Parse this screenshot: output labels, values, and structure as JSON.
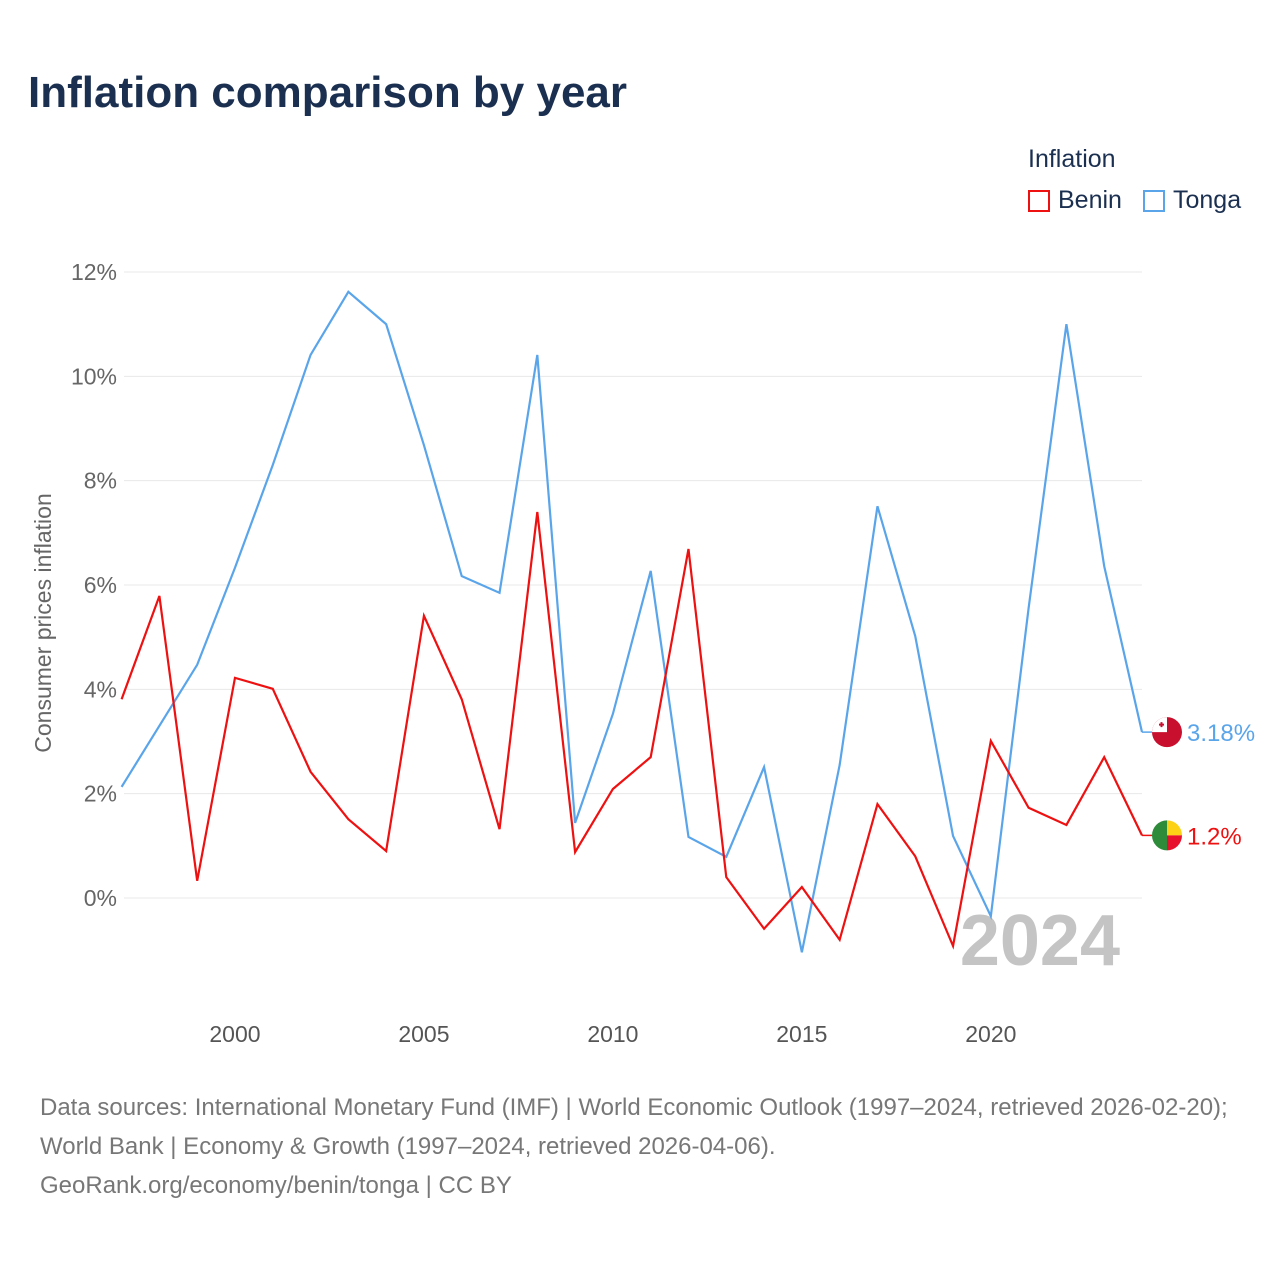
{
  "title": "Inflation comparison by year",
  "legend": {
    "title": "Inflation",
    "items": [
      {
        "label": "Benin",
        "color": "#ee1111"
      },
      {
        "label": "Tonga",
        "color": "#5aa5ea"
      }
    ]
  },
  "watermark_year": "2024",
  "footer": {
    "sources": "Data sources: International Monetary Fund (IMF) | World Economic Outlook (1997–2024, retrieved 2026-02-20); World Bank | Economy & Growth (1997–2024, retrieved 2026-04-06).",
    "credit": "GeoRank.org/economy/benin/tonga | CC BY"
  },
  "chart_data": {
    "type": "line",
    "title": "Inflation comparison by year",
    "xlabel": "",
    "ylabel": "Consumer prices inflation",
    "ylim": [
      -1.8,
      12
    ],
    "xlim": [
      1997,
      2024
    ],
    "yticks": [
      0,
      2,
      4,
      6,
      8,
      10,
      12
    ],
    "ytick_labels": [
      "0%",
      "2%",
      "4%",
      "6%",
      "8%",
      "10%",
      "12%"
    ],
    "xticks": [
      2000,
      2005,
      2010,
      2015,
      2020
    ],
    "xtick_labels": [
      "2000",
      "2005",
      "2010",
      "2015",
      "2020"
    ],
    "grid": true,
    "legend_position": "top-right",
    "x": [
      1997,
      1998,
      1999,
      2000,
      2001,
      2002,
      2003,
      2004,
      2005,
      2006,
      2007,
      2008,
      2009,
      2010,
      2011,
      2012,
      2013,
      2014,
      2015,
      2016,
      2017,
      2018,
      2019,
      2020,
      2021,
      2022,
      2023,
      2024
    ],
    "series": [
      {
        "name": "Benin",
        "color": "#ee1111",
        "end_label": "1.2%",
        "values": [
          3.81,
          5.79,
          0.33,
          4.22,
          4.01,
          2.42,
          1.51,
          0.9,
          5.41,
          3.81,
          1.32,
          7.4,
          0.88,
          2.09,
          2.7,
          6.69,
          0.4,
          -0.59,
          0.21,
          -0.8,
          1.8,
          0.8,
          -0.92,
          3.01,
          1.73,
          1.4,
          2.7,
          1.2
        ]
      },
      {
        "name": "Tonga",
        "color": "#5aa5ea",
        "end_label": "3.18%",
        "values": [
          2.13,
          3.3,
          4.47,
          6.33,
          8.3,
          10.41,
          11.62,
          11.0,
          8.68,
          6.17,
          5.85,
          10.41,
          1.44,
          3.53,
          6.27,
          1.17,
          0.79,
          2.51,
          -1.04,
          2.55,
          7.51,
          5.02,
          1.19,
          -0.35,
          5.56,
          11.0,
          6.36,
          3.18
        ]
      }
    ]
  }
}
